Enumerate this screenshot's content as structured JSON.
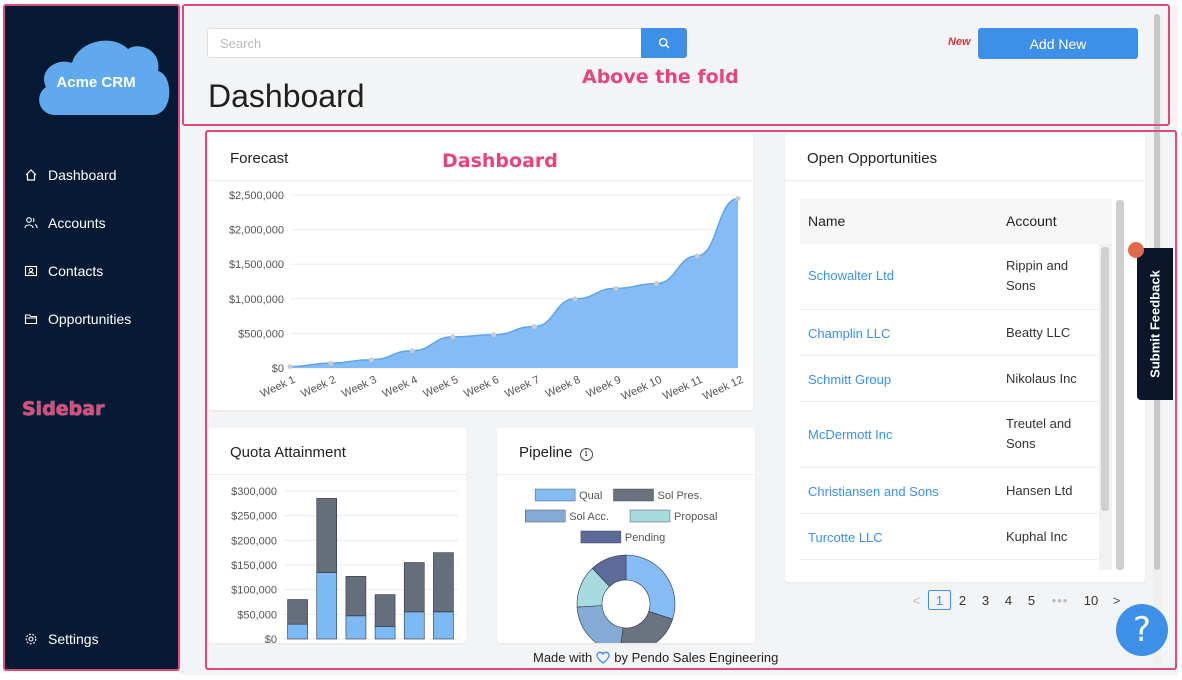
{
  "app": {
    "name": "Acme CRM"
  },
  "sidebar": {
    "items": [
      {
        "label": "Dashboard",
        "icon": "home-icon"
      },
      {
        "label": "Accounts",
        "icon": "accounts-icon"
      },
      {
        "label": "Contacts",
        "icon": "contacts-icon"
      },
      {
        "label": "Opportunities",
        "icon": "folder-icon"
      }
    ],
    "settings": {
      "label": "Settings",
      "icon": "gear-icon"
    }
  },
  "header": {
    "search_placeholder": "Search",
    "new_badge": "New",
    "add_new_label": "Add New",
    "title": "Dashboard"
  },
  "annotations": {
    "above_fold": "Above the fold",
    "dashboard": "Dashboard",
    "sidebar": "Sidebar"
  },
  "forecast": {
    "title": "Forecast"
  },
  "quota": {
    "title": "Quota Attainment"
  },
  "pipeline": {
    "title": "Pipeline",
    "info_icon": "info-icon"
  },
  "opportunities": {
    "title": "Open Opportunities",
    "columns": [
      "Name",
      "Account"
    ],
    "rows": [
      {
        "name": "Schowalter Ltd",
        "account": "Rippin and Sons"
      },
      {
        "name": "Champlin LLC",
        "account": "Beatty LLC"
      },
      {
        "name": "Schmitt Group",
        "account": "Nikolaus Inc"
      },
      {
        "name": "McDermott Inc",
        "account": "Treutel and Sons"
      },
      {
        "name": "Christiansen and Sons",
        "account": "Hansen Ltd"
      },
      {
        "name": "Turcotte LLC",
        "account": "Kuphal Inc"
      }
    ]
  },
  "pagination": {
    "prev": "<",
    "pages": [
      "1",
      "2",
      "3",
      "4",
      "5"
    ],
    "ellipsis": "•••",
    "last": "10",
    "next": ">",
    "current": "1"
  },
  "feedback": {
    "label": "Submit Feedback"
  },
  "help": {
    "label": "?"
  },
  "footer": {
    "prefix": "Made with",
    "suffix": "by Pendo Sales Engineering"
  },
  "colors": {
    "sidebar_bg": "#061a33",
    "accent": "#3d8fe8",
    "annotation": "#e8467a",
    "new_badge": "#e0323c"
  },
  "chart_data": [
    {
      "type": "area",
      "title": "Forecast",
      "categories": [
        "Week 1",
        "Week 2",
        "Week 3",
        "Week 4",
        "Week 5",
        "Week 6",
        "Week 7",
        "Week 8",
        "Week 9",
        "Week 10",
        "Week 11",
        "Week 12"
      ],
      "values": [
        20000,
        70000,
        120000,
        250000,
        450000,
        480000,
        600000,
        1000000,
        1150000,
        1220000,
        1620000,
        2450000
      ],
      "yticks": [
        "$2,500,000",
        "$2,000,000",
        "$1,500,000",
        "$1,000,000",
        "$500,000",
        "$0"
      ],
      "ylim": [
        0,
        2500000
      ],
      "grid": true
    },
    {
      "type": "bar",
      "title": "Quota Attainment",
      "stacked": true,
      "series": [
        {
          "values": [
            30000,
            135000,
            47000,
            25000,
            55000,
            55000
          ],
          "color": "#7db9f2"
        },
        {
          "values": [
            50000,
            150000,
            80000,
            65000,
            100000,
            120000
          ],
          "color": "#656e7b"
        }
      ],
      "yticks": [
        "$300,000",
        "$250,000",
        "$200,000",
        "$150,000",
        "$100,000",
        "$50,000",
        "$0"
      ],
      "ylim": [
        0,
        300000
      ]
    },
    {
      "type": "pie",
      "title": "Pipeline",
      "donut": true,
      "legend": [
        "Qual",
        "Sol Pres.",
        "Sol Acc.",
        "Proposal",
        "Pending"
      ],
      "legend_colors": [
        "#86bcf5",
        "#6b7280",
        "#84aad6",
        "#a6dbe0",
        "#5d6b9a"
      ],
      "slices": [
        {
          "label": "Qual",
          "value": 30,
          "color": "#86bcf5"
        },
        {
          "label": "Sol Pres.",
          "value": 22,
          "color": "#6b7280"
        },
        {
          "label": "Sol Acc.",
          "value": 22,
          "color": "#84aad6"
        },
        {
          "label": "Proposal",
          "value": 14,
          "color": "#a6dbe0"
        },
        {
          "label": "Pending",
          "value": 12,
          "color": "#5d6b9a"
        }
      ]
    }
  ]
}
